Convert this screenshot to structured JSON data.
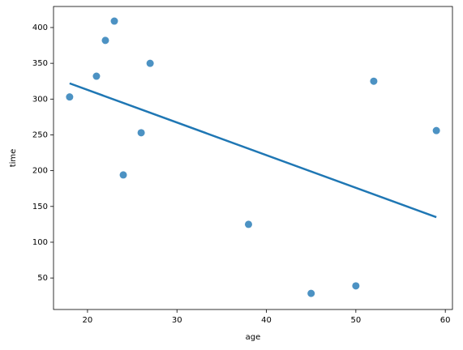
{
  "chart_data": {
    "type": "scatter",
    "x_label": "age",
    "y_label": "time",
    "series": [
      {
        "color": "#1f77b4",
        "x": [
          18,
          21,
          22,
          23,
          24,
          26,
          27,
          38,
          45,
          50,
          52,
          59
        ],
        "values": [
          303,
          332,
          382,
          409,
          194,
          253,
          350,
          125,
          28.5,
          39,
          325,
          256
        ]
      }
    ],
    "regression_line": {
      "color": "#1f77b4",
      "x": [
        18,
        59
      ],
      "values": [
        322,
        135
      ]
    },
    "xlim": [
      16.2,
      60.8
    ],
    "ylim": [
      6,
      429.4
    ],
    "xticks": [
      20,
      30,
      40,
      50,
      60
    ],
    "yticks": [
      50,
      100,
      150,
      200,
      250,
      300,
      350,
      400
    ]
  }
}
